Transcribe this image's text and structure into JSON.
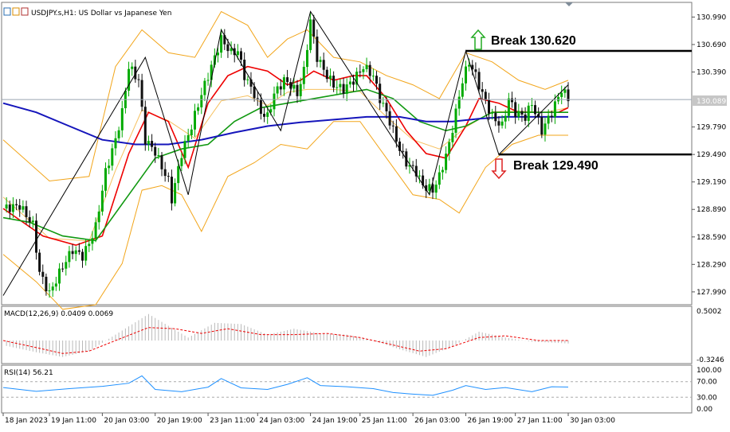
{
  "main": {
    "symbol_title": "USDJPY.s,H1:  US Dollar vs Japanese Yen",
    "current_price": "130.089"
  },
  "annotations": {
    "break_up": "Break 130.620",
    "break_down": "Break 129.490"
  },
  "macd": {
    "title": "MACD(12,26,9) 0.0409 0.0069",
    "top": "0.5002",
    "bottom": "-0.3246"
  },
  "rsi": {
    "title": "RSI(14) 56.21",
    "ticks": [
      "100.00",
      "70.00",
      "30.00",
      "0.00"
    ]
  },
  "colors": {
    "bull": "#00aa00",
    "bear": "#111111",
    "ma_red": "#ee0000",
    "ma_green": "#119911",
    "ma_blue": "#1515bb",
    "bollinger": "#f2a51a",
    "macd_signal": "#ee0000",
    "rsi": "#1e90ff"
  },
  "chart_data": {
    "type": "candlestick",
    "title": "USDJPY.s,H1:  US Dollar vs Japanese Yen",
    "x_ticks": [
      "18 Jan 2023",
      "19 Jan 11:00",
      "20 Jan 03:00",
      "20 Jan 19:00",
      "23 Jan 11:00",
      "24 Jan 03:00",
      "24 Jan 19:00",
      "25 Jan 11:00",
      "26 Jan 03:00",
      "26 Jan 19:00",
      "27 Jan 11:00",
      "30 Jan 03:00"
    ],
    "y_ticks": [
      "130.990",
      "130.690",
      "130.390",
      "130.089",
      "129.790",
      "129.490",
      "129.190",
      "128.890",
      "128.590",
      "128.290",
      "127.990"
    ],
    "ylim": [
      127.85,
      131.15
    ],
    "levels": [
      130.62,
      129.49
    ],
    "current_price": 130.089,
    "close_path": [
      [
        0,
        128.9
      ],
      [
        5,
        128.93
      ],
      [
        9,
        128.72
      ],
      [
        11,
        128.2
      ],
      [
        14,
        127.97
      ],
      [
        18,
        128.27
      ],
      [
        21,
        128.45
      ],
      [
        24,
        128.38
      ],
      [
        26,
        128.52
      ],
      [
        28,
        128.7
      ],
      [
        31,
        129.3
      ],
      [
        34,
        129.65
      ],
      [
        36,
        129.95
      ],
      [
        38,
        130.45
      ],
      [
        41,
        130.3
      ],
      [
        43,
        129.65
      ],
      [
        46,
        129.52
      ],
      [
        48,
        129.35
      ],
      [
        50,
        129.2
      ],
      [
        51,
        129.0
      ],
      [
        54,
        129.5
      ],
      [
        57,
        129.8
      ],
      [
        60,
        130.15
      ],
      [
        63,
        130.45
      ],
      [
        66,
        130.75
      ],
      [
        69,
        130.6
      ],
      [
        71,
        130.62
      ],
      [
        73,
        130.35
      ],
      [
        76,
        130.15
      ],
      [
        78,
        129.95
      ],
      [
        80,
        129.9
      ],
      [
        82,
        130.15
      ],
      [
        85,
        130.3
      ],
      [
        87,
        130.25
      ],
      [
        89,
        130.15
      ],
      [
        91,
        130.4
      ],
      [
        93,
        130.95
      ],
      [
        95,
        130.55
      ],
      [
        98,
        130.35
      ],
      [
        100,
        130.25
      ],
      [
        103,
        130.2
      ],
      [
        106,
        130.3
      ],
      [
        109,
        130.45
      ],
      [
        112,
        130.35
      ],
      [
        114,
        130.1
      ],
      [
        116,
        129.95
      ],
      [
        118,
        129.75
      ],
      [
        120,
        129.55
      ],
      [
        122,
        129.4
      ],
      [
        125,
        129.3
      ],
      [
        127,
        129.15
      ],
      [
        130,
        129.1
      ],
      [
        132,
        129.25
      ],
      [
        135,
        129.6
      ],
      [
        137,
        129.95
      ],
      [
        139,
        130.3
      ],
      [
        141,
        130.5
      ],
      [
        143,
        130.35
      ],
      [
        145,
        130.15
      ],
      [
        148,
        129.9
      ],
      [
        151,
        129.8
      ],
      [
        153,
        130.1
      ],
      [
        155,
        129.95
      ],
      [
        158,
        129.9
      ],
      [
        160,
        130.05
      ],
      [
        163,
        129.75
      ],
      [
        166,
        129.95
      ],
      [
        169,
        130.2
      ],
      [
        171,
        130.1
      ]
    ],
    "series": [
      {
        "name": "",
        "color": "#ee0000",
        "path": [
          [
            0,
            128.9
          ],
          [
            12,
            128.6
          ],
          [
            22,
            128.5
          ],
          [
            30,
            128.6
          ],
          [
            38,
            129.5
          ],
          [
            44,
            129.95
          ],
          [
            50,
            129.85
          ],
          [
            56,
            129.35
          ],
          [
            62,
            130.05
          ],
          [
            68,
            130.35
          ],
          [
            74,
            130.45
          ],
          [
            80,
            130.4
          ],
          [
            86,
            130.25
          ],
          [
            90,
            130.3
          ],
          [
            94,
            130.4
          ],
          [
            100,
            130.3
          ],
          [
            106,
            130.35
          ],
          [
            110,
            130.35
          ],
          [
            116,
            130.1
          ],
          [
            122,
            129.75
          ],
          [
            128,
            129.5
          ],
          [
            134,
            129.45
          ],
          [
            140,
            129.8
          ],
          [
            144,
            130.1
          ],
          [
            150,
            130.05
          ],
          [
            156,
            129.95
          ],
          [
            162,
            129.95
          ],
          [
            168,
            129.95
          ],
          [
            171,
            130.0
          ]
        ]
      },
      {
        "name": "",
        "color": "#119911",
        "path": [
          [
            0,
            128.8
          ],
          [
            8,
            128.75
          ],
          [
            18,
            128.6
          ],
          [
            28,
            128.55
          ],
          [
            38,
            129.05
          ],
          [
            46,
            129.45
          ],
          [
            54,
            129.55
          ],
          [
            62,
            129.6
          ],
          [
            70,
            129.85
          ],
          [
            78,
            130.0
          ],
          [
            86,
            130.05
          ],
          [
            94,
            130.1
          ],
          [
            102,
            130.15
          ],
          [
            110,
            130.2
          ],
          [
            118,
            130.1
          ],
          [
            126,
            129.85
          ],
          [
            134,
            129.75
          ],
          [
            140,
            129.8
          ],
          [
            148,
            129.95
          ],
          [
            156,
            129.95
          ],
          [
            164,
            129.95
          ],
          [
            171,
            129.95
          ]
        ]
      },
      {
        "name": "",
        "color": "#1515bb",
        "path": [
          [
            0,
            130.05
          ],
          [
            10,
            129.95
          ],
          [
            20,
            129.8
          ],
          [
            30,
            129.65
          ],
          [
            40,
            129.6
          ],
          [
            50,
            129.6
          ],
          [
            60,
            129.65
          ],
          [
            70,
            129.73
          ],
          [
            80,
            129.8
          ],
          [
            90,
            129.84
          ],
          [
            100,
            129.87
          ],
          [
            110,
            129.9
          ],
          [
            120,
            129.9
          ],
          [
            128,
            129.85
          ],
          [
            136,
            129.85
          ],
          [
            144,
            129.88
          ],
          [
            152,
            129.9
          ],
          [
            160,
            129.9
          ],
          [
            171,
            129.9
          ]
        ]
      }
    ],
    "bollinger": {
      "upper": [
        [
          0,
          129.65
        ],
        [
          14,
          129.2
        ],
        [
          26,
          129.25
        ],
        [
          34,
          130.45
        ],
        [
          42,
          130.85
        ],
        [
          50,
          130.6
        ],
        [
          58,
          130.55
        ],
        [
          66,
          131.05
        ],
        [
          74,
          130.9
        ],
        [
          80,
          130.55
        ],
        [
          86,
          130.75
        ],
        [
          92,
          130.85
        ],
        [
          100,
          130.55
        ],
        [
          108,
          130.5
        ],
        [
          116,
          130.35
        ],
        [
          124,
          130.25
        ],
        [
          132,
          130.1
        ],
        [
          140,
          130.6
        ],
        [
          148,
          130.5
        ],
        [
          156,
          130.3
        ],
        [
          164,
          130.2
        ],
        [
          171,
          130.3
        ]
      ],
      "lower": [
        [
          0,
          128.4
        ],
        [
          10,
          128.1
        ],
        [
          18,
          127.8
        ],
        [
          28,
          127.85
        ],
        [
          36,
          128.3
        ],
        [
          42,
          129.1
        ],
        [
          48,
          129.15
        ],
        [
          54,
          129.05
        ],
        [
          60,
          128.65
        ],
        [
          68,
          129.25
        ],
        [
          76,
          129.4
        ],
        [
          84,
          129.6
        ],
        [
          92,
          129.55
        ],
        [
          100,
          129.85
        ],
        [
          108,
          129.85
        ],
        [
          116,
          129.45
        ],
        [
          124,
          129.05
        ],
        [
          132,
          129.0
        ],
        [
          138,
          128.85
        ],
        [
          146,
          129.35
        ],
        [
          154,
          129.6
        ],
        [
          162,
          129.7
        ],
        [
          171,
          129.7
        ]
      ]
    },
    "zigzag": [
      [
        0,
        127.95
      ],
      [
        43,
        130.55
      ],
      [
        56,
        129.05
      ],
      [
        66,
        130.85
      ],
      [
        84,
        129.75
      ],
      [
        93,
        131.05
      ],
      [
        129,
        129.05
      ],
      [
        140,
        130.62
      ],
      [
        150,
        129.49
      ],
      [
        171,
        130.25
      ]
    ],
    "macd_hist": [
      [
        0,
        -0.08
      ],
      [
        10,
        -0.2
      ],
      [
        18,
        -0.28
      ],
      [
        26,
        -0.18
      ],
      [
        34,
        0.1
      ],
      [
        44,
        0.45
      ],
      [
        50,
        0.25
      ],
      [
        56,
        0.05
      ],
      [
        64,
        0.3
      ],
      [
        72,
        0.28
      ],
      [
        80,
        0.1
      ],
      [
        88,
        0.2
      ],
      [
        96,
        0.12
      ],
      [
        104,
        0.1
      ],
      [
        112,
        0.0
      ],
      [
        120,
        -0.15
      ],
      [
        128,
        -0.28
      ],
      [
        136,
        -0.1
      ],
      [
        144,
        0.15
      ],
      [
        152,
        0.05
      ],
      [
        160,
        -0.02
      ],
      [
        171,
        -0.05
      ]
    ],
    "macd_signal": [
      [
        0,
        0.0
      ],
      [
        10,
        -0.12
      ],
      [
        18,
        -0.22
      ],
      [
        26,
        -0.18
      ],
      [
        34,
        0.0
      ],
      [
        44,
        0.22
      ],
      [
        52,
        0.2
      ],
      [
        60,
        0.12
      ],
      [
        68,
        0.2
      ],
      [
        78,
        0.1
      ],
      [
        88,
        0.1
      ],
      [
        98,
        0.12
      ],
      [
        108,
        0.05
      ],
      [
        116,
        -0.05
      ],
      [
        126,
        -0.18
      ],
      [
        134,
        -0.14
      ],
      [
        144,
        0.05
      ],
      [
        152,
        0.08
      ],
      [
        162,
        0.0
      ],
      [
        171,
        0.0
      ]
    ],
    "rsi": [
      [
        0,
        55
      ],
      [
        10,
        45
      ],
      [
        20,
        52
      ],
      [
        30,
        58
      ],
      [
        38,
        66
      ],
      [
        42,
        85
      ],
      [
        46,
        50
      ],
      [
        54,
        44
      ],
      [
        62,
        56
      ],
      [
        66,
        78
      ],
      [
        72,
        54
      ],
      [
        80,
        50
      ],
      [
        86,
        63
      ],
      [
        92,
        80
      ],
      [
        96,
        60
      ],
      [
        104,
        57
      ],
      [
        112,
        52
      ],
      [
        118,
        42
      ],
      [
        124,
        38
      ],
      [
        130,
        35
      ],
      [
        136,
        48
      ],
      [
        140,
        60
      ],
      [
        146,
        50
      ],
      [
        152,
        55
      ],
      [
        160,
        44
      ],
      [
        166,
        57
      ],
      [
        171,
        56.21
      ]
    ],
    "rsi_levels": [
      70,
      30
    ],
    "rsi_value": 56.21,
    "macd_values": [
      0.0409,
      0.0069
    ]
  }
}
